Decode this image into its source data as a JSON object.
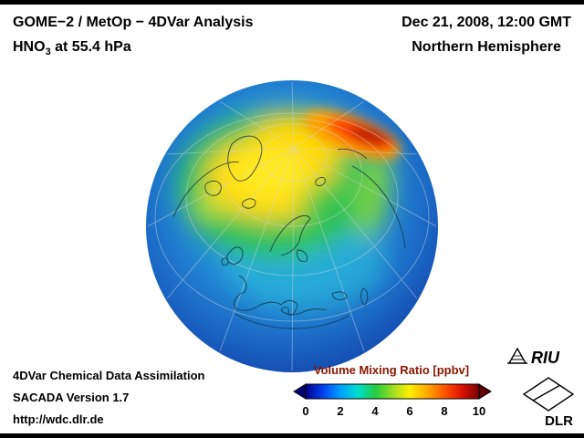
{
  "title": {
    "line1": "GOME−2 / MetOp − 4DVar Analysis",
    "species": "HNO",
    "species_sub": "3",
    "level": " at 55.4 hPa"
  },
  "datetime": {
    "date": "Dec 21, 2008, 12:00 GMT",
    "region": "Northern Hemisphere"
  },
  "footer": {
    "line1": "4DVar Chemical Data Assimilation",
    "line2": "SACADA Version 1.7",
    "line3": "http://wdc.dlr.de"
  },
  "colorbar": {
    "title": "Volume Mixing Ratio [ppbv]",
    "title_color": "#8b1500",
    "min": 0,
    "max": 10,
    "ticks": [
      "0",
      "2",
      "4",
      "6",
      "8",
      "10"
    ],
    "gradient": [
      "#000088",
      "#0040ee",
      "#00a0ff",
      "#00ddd0",
      "#22cc44",
      "#99dd22",
      "#ffee00",
      "#ffaa00",
      "#ff5500",
      "#dd1100",
      "#770000"
    ],
    "left_arrow_color": "#000070",
    "right_arrow_color": "#600000"
  },
  "logos": {
    "riu_text": "RIU",
    "dlr_text": "DLR"
  },
  "chart_data": {
    "type": "heatmap",
    "title": "GOME−2 / MetOp − 4DVar Analysis, HNO3 at 55.4 hPa",
    "datetime": "Dec 21, 2008, 12:00 GMT",
    "projection": "orthographic view of the Northern Hemisphere, pole in upper-center of disk, graticule and coastlines overlaid",
    "colorbar": {
      "label": "Volume Mixing Ratio [ppbv]",
      "range": [
        0,
        10
      ],
      "ticks": [
        0,
        2,
        4,
        6,
        8,
        10
      ],
      "colormap": "rainbow: dark blue - blue - cyan - green - yellow - orange - red - dark red, with under/over arrows"
    },
    "features": [
      {
        "region": "narrow polar-vortex crescent over the high Arctic / Siberian sector (upper-right of pole)",
        "approx_value_ppbv": 9.5
      },
      {
        "region": "broad elevated patch surrounding the pole (Greenland - central Arctic)",
        "approx_value_ppbv": 6
      },
      {
        "region": "band curving down the right (Asian) limb of the disk",
        "approx_value_ppbv": 4.5
      },
      {
        "region": "green transition ring around the vortex patch",
        "approx_value_ppbv": 3.5
      },
      {
        "region": "mid-latitudes (Europe, central disk)",
        "approx_value_ppbv": 2
      },
      {
        "region": "outer disk edge / subtropical latitudes",
        "approx_value_ppbv": 0.8
      }
    ]
  }
}
